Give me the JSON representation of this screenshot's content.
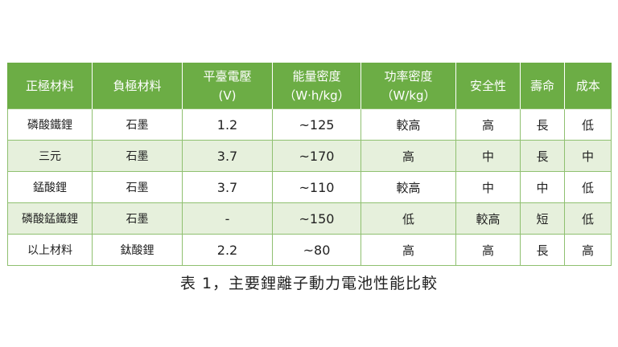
{
  "table": {
    "headers": [
      [
        "正極材料"
      ],
      [
        "負極材料"
      ],
      [
        "平臺電壓",
        "(V)"
      ],
      [
        "能量密度",
        "（W·h/kg）"
      ],
      [
        "功率密度",
        "（W/kg）"
      ],
      [
        "安全性"
      ],
      [
        "壽命"
      ],
      [
        "成本"
      ]
    ],
    "rows": [
      [
        "磷酸鐵鋰",
        "石墨",
        "1.2",
        "~125",
        "較高",
        "高",
        "長",
        "低"
      ],
      [
        "三元",
        "石墨",
        "3.7",
        "~170",
        "高",
        "中",
        "長",
        "中"
      ],
      [
        "錳酸鋰",
        "石墨",
        "3.7",
        "~110",
        "較高",
        "中",
        "中",
        "低"
      ],
      [
        "磷酸錳鐵鋰",
        "石墨",
        "-",
        "~150",
        "低",
        "較高",
        "短",
        "低"
      ],
      [
        "以上材料",
        "鈦酸鋰",
        "2.2",
        "~80",
        "高",
        "高",
        "長",
        "高"
      ]
    ]
  },
  "caption": "表 1，主要鋰離子動力電池性能比較",
  "colors": {
    "header_bg": "#6cad45",
    "header_text": "#ffffff",
    "alt_row_bg": "#e6f0dc",
    "border": "#8fc070"
  }
}
